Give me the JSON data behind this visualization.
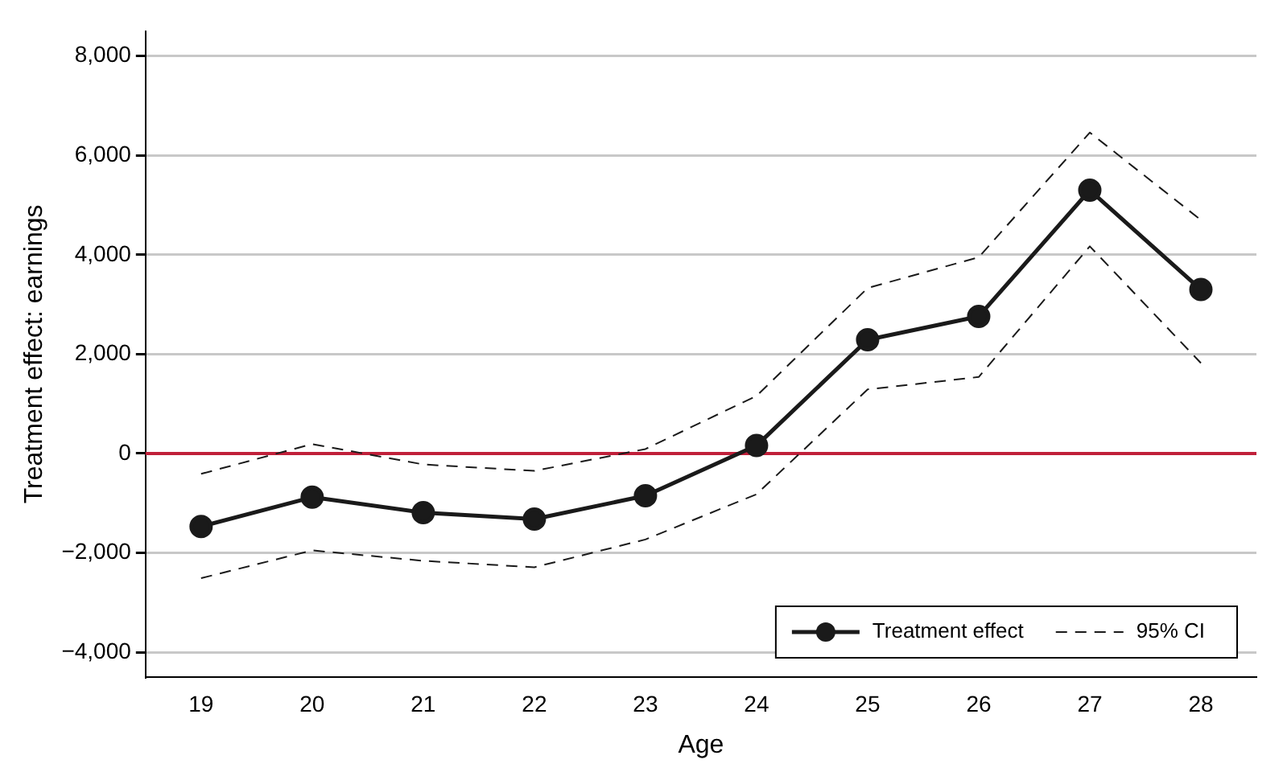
{
  "chart_data": {
    "type": "line",
    "xlabel": "Age",
    "ylabel": "Treatment effect: earnings",
    "categories": [
      "19",
      "20",
      "21",
      "22",
      "23",
      "24",
      "25",
      "26",
      "27",
      "28"
    ],
    "series": [
      {
        "name": "Treatment effect",
        "color": "#1a1a1a",
        "marker": "circle",
        "line_style": "solid",
        "values": [
          -1470,
          -880,
          -1190,
          -1320,
          -850,
          160,
          2290,
          2760,
          5300,
          3300
        ]
      },
      {
        "name": "95% CI",
        "color": "#1a1a1a",
        "marker": "none",
        "line_style": "dashed",
        "values": [
          -410,
          190,
          -220,
          -350,
          90,
          1160,
          3330,
          3950,
          6460,
          4700
        ]
      },
      {
        "color": "#1a1a1a",
        "marker": "none",
        "line_style": "dashed",
        "values": [
          -2510,
          -1950,
          -2160,
          -2290,
          -1730,
          -820,
          1290,
          1540,
          4170,
          1820
        ]
      }
    ],
    "ylim": [
      -4500,
      8500
    ],
    "yticks": [
      {
        "value": -4000,
        "label": "−4,000"
      },
      {
        "value": -2000,
        "label": "−2,000"
      },
      0,
      {
        "value": 2000,
        "label": "2,000"
      },
      {
        "value": 4000,
        "label": "4,000"
      },
      {
        "value": 6000,
        "label": "6,000"
      },
      {
        "value": 8000,
        "label": "8,000"
      }
    ],
    "ref_lines": [
      {
        "axis": "y",
        "value": 0,
        "color": "#c0203a"
      }
    ],
    "grid": "y",
    "legend": "bottom right"
  }
}
